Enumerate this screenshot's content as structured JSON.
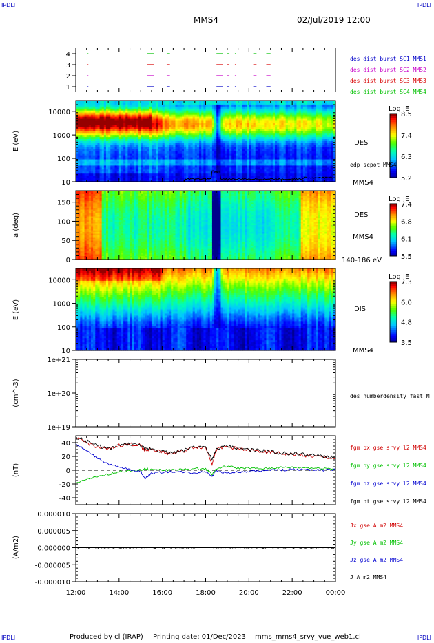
{
  "header": {
    "corner_left": "IPDLI",
    "corner_right": "IPDLI",
    "spacecraft": "MMS4",
    "datetime": "02/Jul/2019 12:00"
  },
  "footer": {
    "corner_left": "IPDLI",
    "corner_right": "IPDLI",
    "produced": "Produced by cl (IRAP)",
    "printing": "Printing date: 01/Dec/2023",
    "file": "mms_mms4_srvy_vue_web1.cl"
  },
  "colors": {
    "mms1": "#0000c8",
    "mms2": "#c800c8",
    "mms3": "#d80000",
    "mms4": "#00c000",
    "bx": "#d00000",
    "by": "#00c000",
    "bz": "#0000d0",
    "bt": "#000000"
  },
  "time_axis": {
    "ticks": [
      "12:00",
      "14:00",
      "16:00",
      "18:00",
      "20:00",
      "22:00",
      "00:00"
    ]
  },
  "chart_data": [
    {
      "type": "scatter",
      "panel": "burst",
      "yticks": [
        "4",
        "3",
        "2",
        "1"
      ],
      "ylim": [
        0.5,
        4.5
      ],
      "legend": [
        "des dist burst SC1 MMS1",
        "des dist burst SC2 MMS2",
        "des dist burst SC3 MMS3",
        "des dist burst SC4 MMS4"
      ],
      "segments_hours": [
        [
          0.55,
          0.58
        ],
        [
          3.3,
          3.6
        ],
        [
          4.2,
          4.35
        ],
        [
          6.5,
          6.8
        ],
        [
          7.0,
          7.1
        ],
        [
          7.35,
          7.4
        ],
        [
          8.2,
          8.35
        ],
        [
          8.8,
          9.0
        ]
      ]
    },
    {
      "type": "heatmap",
      "panel": "des-energy",
      "ylabel": "E (eV)",
      "yticks": [
        "10000",
        "1000",
        "100",
        "10"
      ],
      "ylim": [
        10,
        30000
      ],
      "yscale": "log",
      "side_labels": [
        "DES",
        "edp scpot MMS4",
        "MMS4"
      ],
      "colorbar": {
        "title": "Log JE",
        "ticks": [
          "8.5",
          "7.4",
          "6.3",
          "5.2"
        ],
        "range": [
          5.2,
          8.5
        ]
      }
    },
    {
      "type": "heatmap",
      "panel": "des-pitch",
      "ylabel": "a (deg)",
      "yticks": [
        "150",
        "100",
        "50",
        "0"
      ],
      "ylim": [
        0,
        180
      ],
      "side_labels": [
        "DES",
        "MMS4",
        "140-186 eV"
      ],
      "colorbar": {
        "title": "Log JE",
        "ticks": [
          "7.4",
          "6.8",
          "6.1",
          "5.5"
        ],
        "range": [
          5.5,
          7.4
        ]
      }
    },
    {
      "type": "heatmap",
      "panel": "dis-energy",
      "ylabel": "E (eV)",
      "yticks": [
        "10000",
        "1000",
        "100",
        "10"
      ],
      "ylim": [
        10,
        30000
      ],
      "yscale": "log",
      "side_labels": [
        "DIS",
        "MMS4"
      ],
      "colorbar": {
        "title": "Log JE",
        "ticks": [
          "7.3",
          "6.0",
          "4.8",
          "3.5"
        ],
        "range": [
          3.5,
          7.3
        ]
      }
    },
    {
      "type": "line",
      "panel": "density",
      "ylabel": "(cm^-3)",
      "yticks": [
        "1e+21",
        "1e+20",
        "1e+19"
      ],
      "ylim": [
        1e+19,
        1e+21
      ],
      "yscale": "log",
      "legend": [
        "des numberdensity fast M"
      ]
    },
    {
      "type": "line",
      "panel": "fgm",
      "ylabel": "(nT)",
      "yticks": [
        "40",
        "20",
        "0",
        "-20",
        "-40"
      ],
      "ylim": [
        -50,
        50
      ],
      "legend": [
        "fgm bx gse srvy l2 MMS4",
        "fgm by gse srvy l2 MMS4",
        "fgm bz gse srvy l2 MMS4",
        "fgm bt gse srvy l2 MMS4"
      ],
      "x_hours": [
        0,
        0.5,
        1,
        1.5,
        2,
        2.5,
        3,
        3.2,
        3.5,
        4,
        4.5,
        5,
        5.5,
        6,
        6.3,
        6.5,
        7,
        7.5,
        8,
        8.5,
        9,
        9.5,
        10,
        10.5,
        11,
        11.5,
        12
      ],
      "series": [
        {
          "name": "fgm bx gse srvy l2 MMS4",
          "values": [
            46,
            40,
            34,
            30,
            36,
            38,
            36,
            28,
            31,
            26,
            24,
            28,
            34,
            33,
            10,
            30,
            34,
            31,
            29,
            27,
            26,
            24,
            23,
            22,
            20,
            19,
            17
          ]
        },
        {
          "name": "fgm by gse srvy l2 MMS4",
          "values": [
            -20,
            -13,
            -10,
            -6,
            -2,
            -1,
            0,
            2,
            1,
            0,
            1,
            1,
            2,
            2,
            -6,
            2,
            6,
            3,
            3,
            2,
            3,
            4,
            4,
            4,
            3,
            3,
            2
          ]
        },
        {
          "name": "fgm bz gse srvy l2 MMS4",
          "values": [
            38,
            28,
            18,
            9,
            4,
            1,
            -2,
            -12,
            -4,
            -3,
            -2,
            -3,
            -4,
            -2,
            -8,
            -1,
            -4,
            -3,
            -2,
            -1,
            0,
            0,
            1,
            1,
            1,
            0,
            1
          ]
        },
        {
          "name": "fgm bt gse srvy l2 MMS4",
          "values": [
            48,
            42,
            36,
            31,
            36,
            38,
            36,
            30,
            32,
            27,
            25,
            29,
            35,
            34,
            14,
            31,
            35,
            32,
            30,
            28,
            27,
            25,
            24,
            23,
            21,
            20,
            18
          ]
        }
      ]
    },
    {
      "type": "line",
      "panel": "current",
      "ylabel": "(A/m2)",
      "yticks": [
        "0.000010",
        "0.000005",
        "0.000000",
        "-0.000005",
        "-0.000010"
      ],
      "ylim": [
        -1e-05,
        1e-05
      ],
      "legend": [
        "Jx gse A m2 MMS4",
        "Jy gse A m2 MMS4",
        "Jz gse A m2 MMS4",
        "J A m2 MMS4"
      ],
      "x_hours": [
        0,
        12
      ],
      "series": [
        {
          "name": "Jx gse A m2 MMS4",
          "values": [
            0,
            0
          ]
        },
        {
          "name": "J A m2 MMS4",
          "values": [
            0,
            0
          ]
        }
      ]
    }
  ]
}
